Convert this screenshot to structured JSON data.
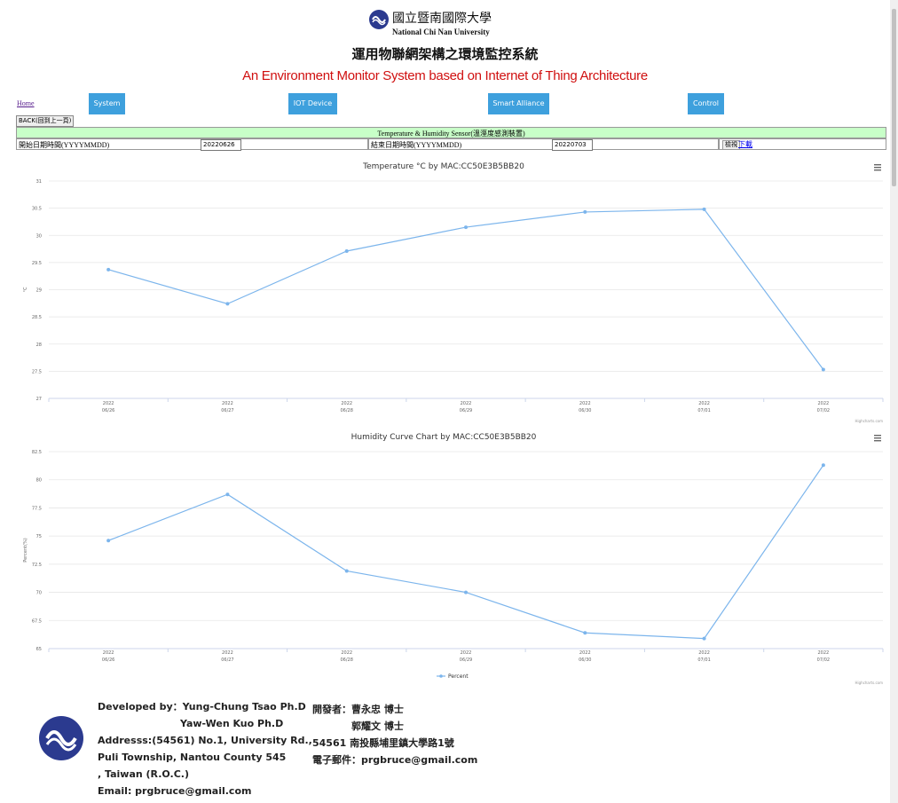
{
  "header": {
    "university_zh": "國立暨南國際大學",
    "university_en": "National Chi Nan University",
    "title_zh": "運用物聯網架構之環境監控系統",
    "title_en": "An Environment Monitor System based on Internet of Thing Architecture"
  },
  "nav": {
    "home": "Home",
    "buttons": [
      "System",
      "IOT Device",
      "Smart Alliance",
      "Control"
    ],
    "back": "BACK(回到上一頁)"
  },
  "form": {
    "heading": "Temperature & Humidity Sensor(溫溼度感測裝置)",
    "start_label": "開始日期時間(YYYYMMDD)",
    "start_value": "20220626",
    "end_label": "結束日期時間(YYYYMMDD)",
    "end_value": "20220703",
    "view_button": "檢視",
    "download_link": "下載"
  },
  "chart_data": [
    {
      "type": "line",
      "title": "Temperature °C by MAC:CC50E3B5BB20",
      "y_label": "°C",
      "categories": [
        [
          "2022",
          "06/26"
        ],
        [
          "2022",
          "06/27"
        ],
        [
          "2022",
          "06/28"
        ],
        [
          "2022",
          "06/29"
        ],
        [
          "2022",
          "06/30"
        ],
        [
          "2022",
          "07/01"
        ],
        [
          "2022",
          "07/02"
        ]
      ],
      "series": [
        {
          "name": "°C",
          "color": "#7cb5ec",
          "values": [
            29.37,
            28.74,
            29.71,
            30.15,
            30.43,
            30.48,
            27.53
          ]
        }
      ],
      "ylim": [
        27,
        31
      ],
      "yticks": [
        27,
        27.5,
        28,
        28.5,
        29,
        29.5,
        30,
        30.5,
        31
      ],
      "grid": true,
      "legend": false,
      "credits": "Highcharts.com"
    },
    {
      "type": "line",
      "title": "Humidity Curve Chart by MAC:CC50E3B5BB20",
      "y_label": "Percent(%)",
      "categories": [
        [
          "2022",
          "06/26"
        ],
        [
          "2022",
          "06/27"
        ],
        [
          "2022",
          "06/28"
        ],
        [
          "2022",
          "06/29"
        ],
        [
          "2022",
          "06/30"
        ],
        [
          "2022",
          "07/01"
        ],
        [
          "2022",
          "07/02"
        ]
      ],
      "series": [
        {
          "name": "Percent",
          "color": "#7cb5ec",
          "values": [
            74.6,
            78.7,
            71.9,
            70.0,
            66.4,
            65.9,
            81.3
          ]
        }
      ],
      "ylim": [
        65,
        82.5
      ],
      "yticks": [
        65,
        67.5,
        70,
        72.5,
        75,
        77.5,
        80,
        82.5
      ],
      "grid": true,
      "legend": true,
      "credits": "Highcharts.com"
    }
  ],
  "footer": {
    "en_lines": [
      "Developed by：Yung-Chung Tsao Ph.D",
      "Yaw-Wen Kuo  Ph.D",
      "Addresss:(54561) No.1, University Rd.,",
      "Puli Township, Nantou County 545",
      ", Taiwan (R.O.C.)",
      "Email: prgbruce@gmail.com"
    ],
    "zh_lines": [
      "開發者：曹永忠 博士",
      "郭耀文 博士",
      "54561 南投縣埔里鎮大學路1號",
      "電子郵件：prgbruce@gmail.com"
    ]
  }
}
